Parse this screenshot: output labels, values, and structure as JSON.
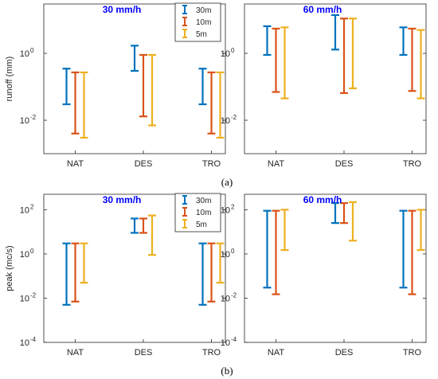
{
  "figure": {
    "caption_a": "(a)",
    "caption_b": "(b)"
  },
  "chart_data": [
    {
      "id": "a-left",
      "type": "range-bar",
      "title": "30 mm/h",
      "ylabel": "runoff (mm)",
      "yscale": "log",
      "ylim": [
        0.001,
        30
      ],
      "yticks": [
        {
          "value": 1,
          "base": "10",
          "exp": "0"
        },
        {
          "value": 0.01,
          "base": "10",
          "exp": "-2"
        }
      ],
      "categories": [
        "NAT",
        "DES",
        "TRO"
      ],
      "legend": {
        "position": "top-right"
      },
      "series": [
        {
          "name": "30m",
          "color": "#0072bd",
          "ranges": [
            [
              0.03,
              0.35
            ],
            [
              0.3,
              1.7
            ],
            [
              0.03,
              0.35
            ]
          ]
        },
        {
          "name": "10m",
          "color": "#d95319",
          "ranges": [
            [
              0.004,
              0.27
            ],
            [
              0.013,
              0.9
            ],
            [
              0.004,
              0.27
            ]
          ]
        },
        {
          "name": "5m",
          "color": "#edb120",
          "ranges": [
            [
              0.003,
              0.27
            ],
            [
              0.007,
              0.9
            ],
            [
              0.003,
              0.27
            ]
          ]
        }
      ]
    },
    {
      "id": "a-right",
      "type": "range-bar",
      "title": "60 mm/h",
      "ylabel": "",
      "yscale": "log",
      "ylim": [
        0.001,
        30
      ],
      "yticks": [
        {
          "value": 1,
          "base": "10",
          "exp": "0"
        },
        {
          "value": 0.01,
          "base": "10",
          "exp": "-2"
        }
      ],
      "categories": [
        "NAT",
        "DES",
        "TRO"
      ],
      "series": [
        {
          "name": "30m",
          "color": "#0072bd",
          "ranges": [
            [
              0.9,
              6.5
            ],
            [
              1.3,
              14
            ],
            [
              0.9,
              6
            ]
          ]
        },
        {
          "name": "10m",
          "color": "#d95319",
          "ranges": [
            [
              0.07,
              5.5
            ],
            [
              0.065,
              11
            ],
            [
              0.075,
              5.5
            ]
          ]
        },
        {
          "name": "5m",
          "color": "#edb120",
          "ranges": [
            [
              0.045,
              6
            ],
            [
              0.09,
              11
            ],
            [
              0.045,
              5
            ]
          ]
        }
      ]
    },
    {
      "id": "b-left",
      "type": "range-bar",
      "title": "30 mm/h",
      "ylabel": "peak (mc/s)",
      "yscale": "log",
      "ylim": [
        0.0001,
        500
      ],
      "yticks": [
        {
          "value": 100,
          "base": "10",
          "exp": "2"
        },
        {
          "value": 1,
          "base": "10",
          "exp": "0"
        },
        {
          "value": 0.01,
          "base": "10",
          "exp": "-2"
        },
        {
          "value": 0.0001,
          "base": "10",
          "exp": "-4"
        }
      ],
      "categories": [
        "NAT",
        "DES",
        "TRO"
      ],
      "legend": {
        "position": "top-right"
      },
      "series": [
        {
          "name": "30m",
          "color": "#0072bd",
          "ranges": [
            [
              0.005,
              3
            ],
            [
              9,
              40
            ],
            [
              0.005,
              3
            ]
          ]
        },
        {
          "name": "10m",
          "color": "#d95319",
          "ranges": [
            [
              0.007,
              3
            ],
            [
              9,
              40
            ],
            [
              0.007,
              3
            ]
          ]
        },
        {
          "name": "5m",
          "color": "#edb120",
          "ranges": [
            [
              0.05,
              3
            ],
            [
              0.9,
              55
            ],
            [
              0.05,
              3
            ]
          ]
        }
      ]
    },
    {
      "id": "b-right",
      "type": "range-bar",
      "title": "60 mm/h",
      "ylabel": "",
      "yscale": "log",
      "ylim": [
        0.0001,
        500
      ],
      "yticks": [
        {
          "value": 100,
          "base": "10",
          "exp": "2"
        },
        {
          "value": 1,
          "base": "10",
          "exp": "0"
        },
        {
          "value": 0.01,
          "base": "10",
          "exp": "-2"
        },
        {
          "value": 0.0001,
          "base": "10",
          "exp": "-4"
        }
      ],
      "categories": [
        "NAT",
        "DES",
        "TRO"
      ],
      "series": [
        {
          "name": "30m",
          "color": "#0072bd",
          "ranges": [
            [
              0.03,
              90
            ],
            [
              25,
              200
            ],
            [
              0.03,
              90
            ]
          ]
        },
        {
          "name": "10m",
          "color": "#d95319",
          "ranges": [
            [
              0.015,
              90
            ],
            [
              25,
              200
            ],
            [
              0.015,
              90
            ]
          ]
        },
        {
          "name": "5m",
          "color": "#edb120",
          "ranges": [
            [
              1.5,
              100
            ],
            [
              4,
              220
            ],
            [
              1.5,
              100
            ]
          ]
        }
      ]
    }
  ]
}
